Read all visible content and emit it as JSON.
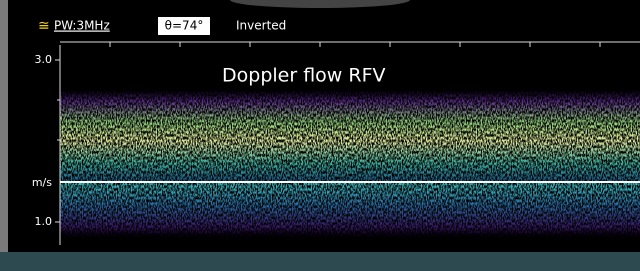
{
  "header": {
    "mode_icon": "≅",
    "mode": "PW:3MHz",
    "angle": "θ=74°",
    "orientation": "Inverted"
  },
  "scale": {
    "top": "3.0",
    "baseline": "m/s",
    "bottom": "1.0"
  },
  "annotation": "Doppler flow RFV"
}
